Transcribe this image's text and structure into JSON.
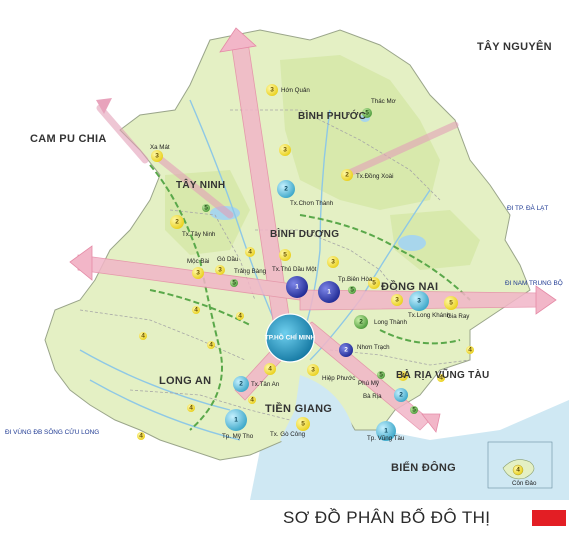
{
  "title": "SƠ ĐỒ PHÂN BỐ ĐÔ THỊ",
  "colors": {
    "accent_bar": "#e31e24",
    "land": "#e2efbf",
    "land_dark": "#cfe3a0",
    "sea": "#bfe0f0",
    "corridor": "#f2b6c8",
    "green_belt": "#5aa84a"
  },
  "regions": {
    "tay_nguyen": "TÂY NGUYÊN",
    "campuchia": "CAM PU CHIA",
    "binh_phuoc": "BÌNH PHƯỚC",
    "tay_ninh": "TÂY NINH",
    "binh_duong": "BÌNH DƯƠNG",
    "dong_nai": "ĐỒNG NAI",
    "long_an": "LONG AN",
    "ba_ria": "BÀ RỊA VŨNG TÀU",
    "tien_giang": "TIỀN GIANG",
    "bien_dong": "BIỂN ĐÔNG"
  },
  "directions": {
    "da_lat": "ĐI TP. ĐÀ LẠT",
    "nam_trung_bo": "ĐI NAM TRUNG BỘ",
    "dbscl": "ĐI VÙNG ĐB SÔNG CỬU LONG"
  },
  "cities": {
    "hon_quan": "Hớn Quản",
    "thac_mo": "Thác Mơ",
    "xa_mat": "Xa Mát",
    "tx_chon_thanh": "Tx.Chơn Thành",
    "tx_dong_xoai": "Tx.Đồng Xoài",
    "tx_tay_ninh": "Tx.Tây Ninh",
    "moc_bai": "Mộc Bài",
    "go_dau": "Gò Dầu",
    "trang_bang": "Trảng Bàng",
    "tx_thu_dau_mot": "Tx.Thủ Dầu Một",
    "tp_bien_hoa": "Tp.Biên Hòa",
    "tx_long_khanh": "Tx.Long Khánh",
    "gia_ray": "Gia Ray",
    "long_thanh": "Long Thành",
    "nhon_trach": "Nhơn Trạch",
    "hiep_phuoc": "Hiệp Phước",
    "tx_tan_an": "Tx.Tân An",
    "phu_my": "Phú Mỹ",
    "ba_ria": "Bà Rịa",
    "tp_my_tho": "Tp. Mỹ Tho",
    "tx_go_cong": "Tx. Gò Công",
    "tp_vung_tau": "Tp. Vũng Tàu",
    "con_dao": "Côn Đảo",
    "hcmc": "TP.HỒ CHÍ MINH"
  },
  "icons": [
    "urban-class-marker",
    "corridor-arrow",
    "island-inset"
  ]
}
